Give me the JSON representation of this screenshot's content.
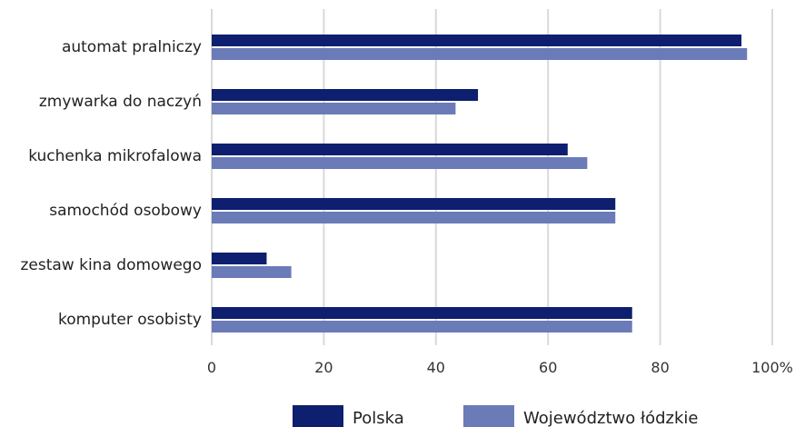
{
  "chart_data": {
    "type": "bar",
    "orientation": "horizontal",
    "categories": [
      "automat pralniczy",
      "zmywarka do naczyń",
      "kuchenka mikrofalowa",
      "samochód osobowy",
      "zestaw kina domowego",
      "komputer osobisty"
    ],
    "series": [
      {
        "name": "Polska",
        "color": "#0d1f6e",
        "values": [
          94.5,
          47.5,
          63.5,
          72.0,
          9.8,
          75.0
        ]
      },
      {
        "name": "Województwo łódzkie",
        "color": "#6b7bb8",
        "values": [
          95.5,
          43.5,
          67.0,
          72.0,
          14.2,
          75.0
        ]
      }
    ],
    "xlim": [
      0,
      100
    ],
    "ticks": [
      "0",
      "20",
      "40",
      "60",
      "80",
      "100%"
    ],
    "tick_values": [
      0,
      20,
      40,
      60,
      80,
      100
    ],
    "grid": true,
    "legend_position": "bottom"
  }
}
